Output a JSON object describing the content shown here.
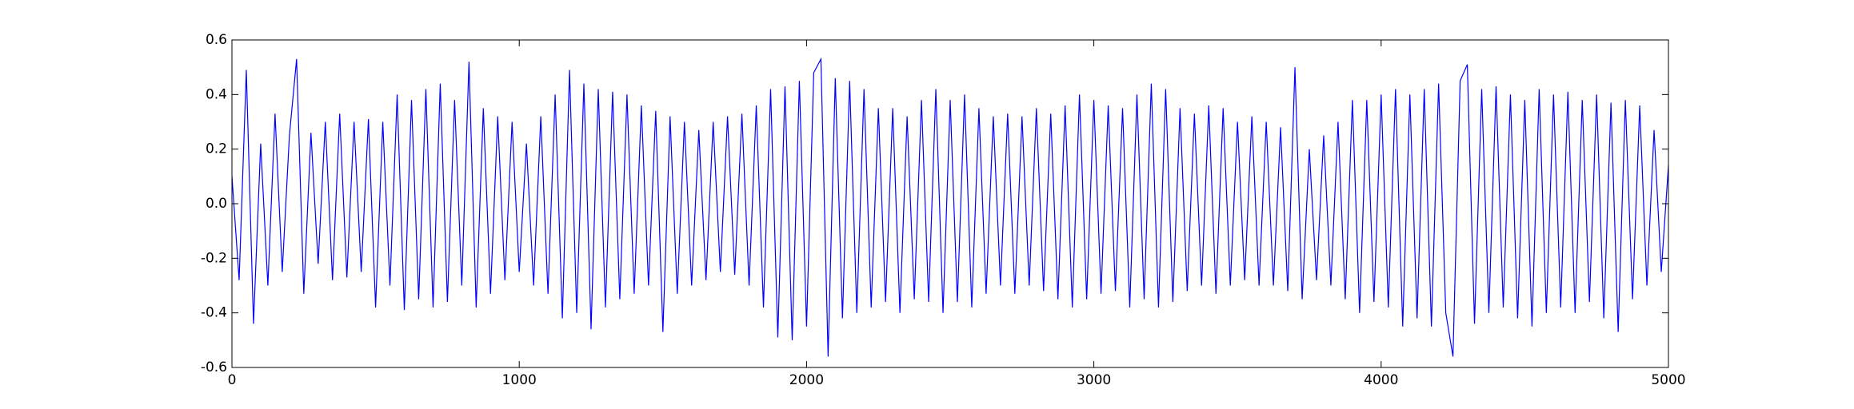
{
  "chart_data": {
    "type": "line",
    "x": [
      0,
      25,
      50,
      75,
      100,
      125,
      150,
      175,
      200,
      225,
      250,
      275,
      300,
      325,
      350,
      375,
      400,
      425,
      450,
      475,
      500,
      525,
      550,
      575,
      600,
      625,
      650,
      675,
      700,
      725,
      750,
      775,
      800,
      825,
      850,
      875,
      900,
      925,
      950,
      975,
      1000,
      1025,
      1050,
      1075,
      1100,
      1125,
      1150,
      1175,
      1200,
      1225,
      1250,
      1275,
      1300,
      1325,
      1350,
      1375,
      1400,
      1425,
      1450,
      1475,
      1500,
      1525,
      1550,
      1575,
      1600,
      1625,
      1650,
      1675,
      1700,
      1725,
      1750,
      1775,
      1800,
      1825,
      1850,
      1875,
      1900,
      1925,
      1950,
      1975,
      2000,
      2025,
      2050,
      2075,
      2100,
      2125,
      2150,
      2175,
      2200,
      2225,
      2250,
      2275,
      2300,
      2325,
      2350,
      2375,
      2400,
      2425,
      2450,
      2475,
      2500,
      2525,
      2550,
      2575,
      2600,
      2625,
      2650,
      2675,
      2700,
      2725,
      2750,
      2775,
      2800,
      2825,
      2850,
      2875,
      2900,
      2925,
      2950,
      2975,
      3000,
      3025,
      3050,
      3075,
      3100,
      3125,
      3150,
      3175,
      3200,
      3225,
      3250,
      3275,
      3300,
      3325,
      3350,
      3375,
      3400,
      3425,
      3450,
      3475,
      3500,
      3525,
      3550,
      3575,
      3600,
      3625,
      3650,
      3675,
      3700,
      3725,
      3750,
      3775,
      3800,
      3825,
      3850,
      3875,
      3900,
      3925,
      3950,
      3975,
      4000,
      4025,
      4050,
      4075,
      4100,
      4125,
      4150,
      4175,
      4200,
      4225,
      4250,
      4275,
      4300,
      4325,
      4350,
      4375,
      4400,
      4425,
      4450,
      4475,
      4500,
      4525,
      4550,
      4575,
      4600,
      4625,
      4650,
      4675,
      4700,
      4725,
      4750,
      4775,
      4800,
      4825,
      4850,
      4875,
      4900,
      4925,
      4950,
      4975,
      5000
    ],
    "series": [
      {
        "color": "#0000ff",
        "values": [
          0.1,
          -0.28,
          0.49,
          -0.44,
          0.22,
          -0.3,
          0.33,
          -0.25,
          0.25,
          0.53,
          -0.33,
          0.26,
          -0.22,
          0.3,
          -0.28,
          0.33,
          -0.27,
          0.3,
          -0.25,
          0.31,
          -0.38,
          0.3,
          -0.3,
          0.4,
          -0.39,
          0.38,
          -0.35,
          0.42,
          -0.38,
          0.44,
          -0.36,
          0.38,
          -0.3,
          0.52,
          -0.38,
          0.35,
          -0.33,
          0.32,
          -0.28,
          0.3,
          -0.25,
          0.22,
          -0.3,
          0.32,
          -0.33,
          0.4,
          -0.42,
          0.49,
          -0.4,
          0.44,
          -0.46,
          0.42,
          -0.38,
          0.41,
          -0.35,
          0.4,
          -0.33,
          0.36,
          -0.3,
          0.34,
          -0.47,
          0.32,
          -0.33,
          0.3,
          -0.3,
          0.27,
          -0.28,
          0.3,
          -0.25,
          0.32,
          -0.26,
          0.33,
          -0.3,
          0.36,
          -0.38,
          0.42,
          -0.49,
          0.43,
          -0.5,
          0.45,
          -0.45,
          0.48,
          0.53,
          -0.56,
          0.46,
          -0.42,
          0.45,
          -0.4,
          0.42,
          -0.38,
          0.35,
          -0.36,
          0.35,
          -0.4,
          0.32,
          -0.35,
          0.38,
          -0.36,
          0.42,
          -0.4,
          0.38,
          -0.36,
          0.4,
          -0.38,
          0.35,
          -0.33,
          0.32,
          -0.3,
          0.33,
          -0.33,
          0.32,
          -0.3,
          0.35,
          -0.32,
          0.33,
          -0.35,
          0.36,
          -0.38,
          0.4,
          -0.35,
          0.38,
          -0.33,
          0.36,
          -0.32,
          0.35,
          -0.38,
          0.4,
          -0.35,
          0.44,
          -0.38,
          0.42,
          -0.36,
          0.35,
          -0.32,
          0.33,
          -0.3,
          0.36,
          -0.33,
          0.35,
          -0.3,
          0.3,
          -0.28,
          0.32,
          -0.3,
          0.3,
          -0.3,
          0.28,
          -0.32,
          0.5,
          -0.35,
          0.2,
          -0.28,
          0.25,
          -0.3,
          0.3,
          -0.35,
          0.38,
          -0.4,
          0.38,
          -0.36,
          0.4,
          -0.38,
          0.42,
          -0.45,
          0.4,
          -0.42,
          0.42,
          -0.45,
          0.44,
          -0.4,
          -0.56,
          0.45,
          0.51,
          -0.44,
          0.42,
          -0.4,
          0.43,
          -0.38,
          0.4,
          -0.42,
          0.38,
          -0.45,
          0.42,
          -0.4,
          0.4,
          -0.38,
          0.41,
          -0.4,
          0.38,
          -0.36,
          0.4,
          -0.42,
          0.37,
          -0.47,
          0.38,
          -0.35,
          0.36,
          -0.3,
          0.27,
          -0.25,
          0.14
        ]
      }
    ],
    "xlim": [
      0,
      5000
    ],
    "xticks": [
      0,
      1000,
      2000,
      3000,
      4000,
      5000
    ],
    "ylim": [
      -0.6,
      0.6
    ],
    "yticks": [
      -0.6,
      -0.4,
      -0.2,
      {
        "value": 0,
        "label": "0.0"
      },
      0.2,
      0.4,
      0.6
    ]
  }
}
